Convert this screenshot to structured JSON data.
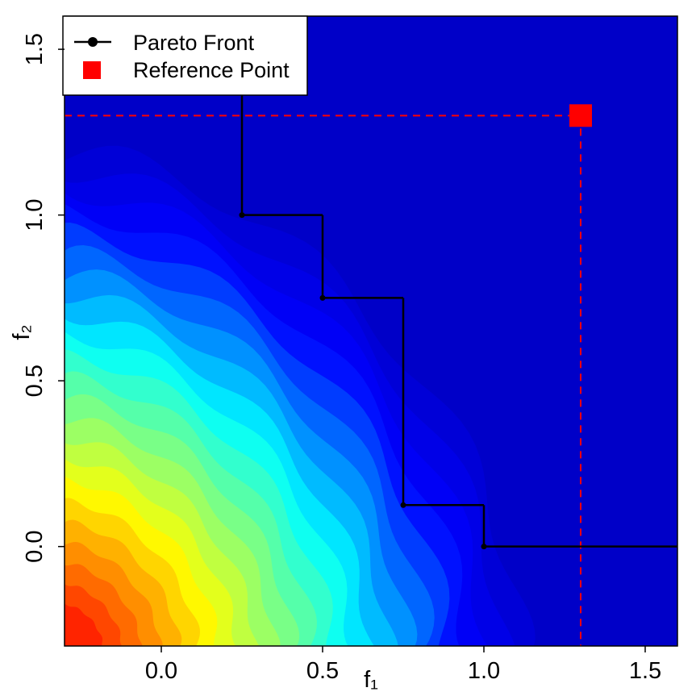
{
  "chart_data": {
    "type": "contour",
    "x_label": "f₁",
    "y_label": "f₂",
    "xlim": [
      -0.3,
      1.6
    ],
    "ylim": [
      -0.3,
      1.6
    ],
    "xticks": [
      {
        "value": 0,
        "label": "0.0"
      },
      {
        "value": 0.5,
        "label": "0.5"
      },
      {
        "value": 1,
        "label": "1.0"
      },
      {
        "value": 1.5,
        "label": "1.5"
      }
    ],
    "yticks": [
      {
        "value": 0,
        "label": "0.0"
      },
      {
        "value": 0.5,
        "label": "0.5"
      },
      {
        "value": 1,
        "label": "1.0"
      },
      {
        "value": 1.5,
        "label": "1.5"
      }
    ],
    "series": [
      {
        "name": "Pareto Front",
        "color": "#000000",
        "x": [
          0.25,
          0.5,
          0.75,
          1
        ],
        "y": [
          1,
          0.75,
          0.125,
          0
        ]
      },
      {
        "name": "Reference Point",
        "color": "#ff0000",
        "x": [
          1.3
        ],
        "y": [
          1.3
        ]
      }
    ],
    "legend": "top-left"
  }
}
